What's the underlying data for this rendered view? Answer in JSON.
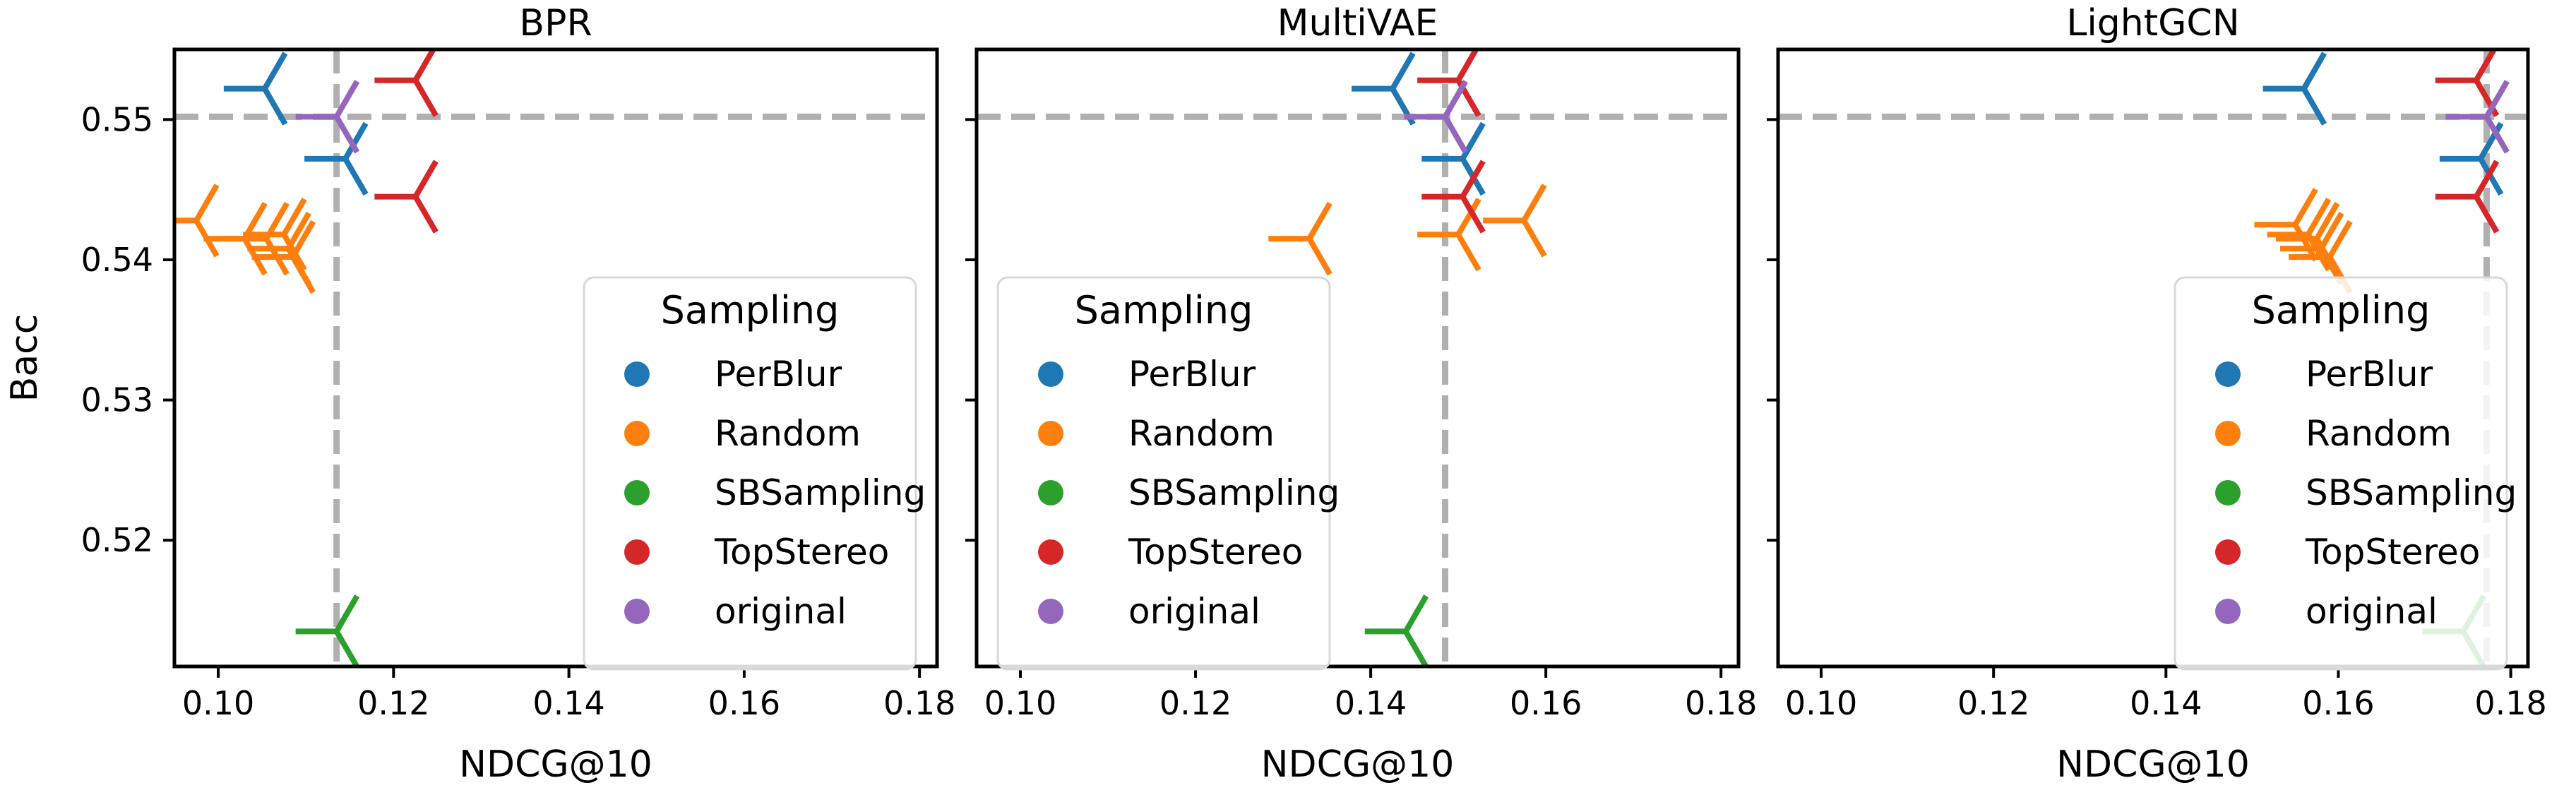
{
  "chart_data": [
    {
      "type": "scatter",
      "title": "BPR",
      "xlabel": "NDCG@10",
      "ylabel": "Bacc",
      "xlim": [
        0.095,
        0.182
      ],
      "ylim": [
        0.511,
        0.555
      ],
      "xticks": [
        "0.10",
        "0.12",
        "0.14",
        "0.16",
        "0.18"
      ],
      "yticks": [
        "0.52",
        "0.53",
        "0.54",
        "0.55"
      ],
      "reference_lines": {
        "x": 0.1135,
        "y": 0.5502
      },
      "series": [
        {
          "name": "PerBlur",
          "points": [
            [
              0.1053,
              0.5522
            ],
            [
              0.1145,
              0.5472
            ]
          ]
        },
        {
          "name": "Random",
          "points": [
            [
              0.0975,
              0.5428
            ],
            [
              0.103,
              0.5415
            ],
            [
              0.1055,
              0.5415
            ],
            [
              0.1075,
              0.5418
            ],
            [
              0.108,
              0.5408
            ],
            [
              0.1085,
              0.5402
            ]
          ]
        },
        {
          "name": "SBSampling",
          "points": [
            [
              0.1135,
              0.5135
            ]
          ]
        },
        {
          "name": "TopStereo",
          "points": [
            [
              0.1225,
              0.5528
            ],
            [
              0.1225,
              0.5445
            ]
          ]
        },
        {
          "name": "original",
          "points": [
            [
              0.1135,
              0.5502
            ]
          ]
        }
      ],
      "legend": {
        "title": "Sampling",
        "position": "lower-right"
      },
      "grid": false
    },
    {
      "type": "scatter",
      "title": "MultiVAE",
      "xlabel": "NDCG@10",
      "ylabel": "",
      "xlim": [
        0.095,
        0.182
      ],
      "ylim": [
        0.511,
        0.555
      ],
      "xticks": [
        "0.10",
        "0.12",
        "0.14",
        "0.16",
        "0.18"
      ],
      "yticks": [
        "0.52",
        "0.53",
        "0.54",
        "0.55"
      ],
      "reference_lines": {
        "x": 0.1485,
        "y": 0.5502
      },
      "series": [
        {
          "name": "PerBlur",
          "points": [
            [
              0.1425,
              0.5522
            ],
            [
              0.1505,
              0.5472
            ]
          ]
        },
        {
          "name": "Random",
          "points": [
            [
              0.133,
              0.5415
            ],
            [
              0.15,
              0.5418
            ],
            [
              0.1575,
              0.5428
            ]
          ]
        },
        {
          "name": "SBSampling",
          "points": [
            [
              0.144,
              0.5135
            ]
          ]
        },
        {
          "name": "TopStereo",
          "points": [
            [
              0.15,
              0.5528
            ],
            [
              0.1505,
              0.5445
            ]
          ]
        },
        {
          "name": "original",
          "points": [
            [
              0.1485,
              0.5502
            ]
          ]
        }
      ],
      "legend": {
        "title": "Sampling",
        "position": "lower-left"
      },
      "grid": false
    },
    {
      "type": "scatter",
      "title": "LightGCN",
      "xlabel": "NDCG@10",
      "ylabel": "",
      "xlim": [
        0.095,
        0.182
      ],
      "ylim": [
        0.511,
        0.555
      ],
      "xticks": [
        "0.10",
        "0.12",
        "0.14",
        "0.16",
        "0.18"
      ],
      "yticks": [
        "0.52",
        "0.53",
        "0.54",
        "0.55"
      ],
      "reference_lines": {
        "x": 0.1772,
        "y": 0.5502
      },
      "series": [
        {
          "name": "PerBlur",
          "points": [
            [
              0.156,
              0.5522
            ],
            [
              0.1765,
              0.5472
            ]
          ]
        },
        {
          "name": "Random",
          "points": [
            [
              0.155,
              0.5425
            ],
            [
              0.1565,
              0.5418
            ],
            [
              0.1575,
              0.5415
            ],
            [
              0.158,
              0.5408
            ],
            [
              0.159,
              0.5402
            ]
          ]
        },
        {
          "name": "SBSampling",
          "points": [
            [
              0.1745,
              0.5135
            ]
          ]
        },
        {
          "name": "TopStereo",
          "points": [
            [
              0.176,
              0.5528
            ],
            [
              0.176,
              0.5445
            ]
          ]
        },
        {
          "name": "original",
          "points": [
            [
              0.1772,
              0.5502
            ]
          ]
        }
      ],
      "legend": {
        "title": "Sampling",
        "position": "lower-right"
      },
      "grid": false
    }
  ],
  "colors": {
    "PerBlur": "#1f77b4",
    "Random": "#ff7f0e",
    "SBSampling": "#2ca02c",
    "TopStereo": "#d62728",
    "original": "#9467bd",
    "reference_line": "#b0b0b0"
  },
  "marker": "tri_left"
}
